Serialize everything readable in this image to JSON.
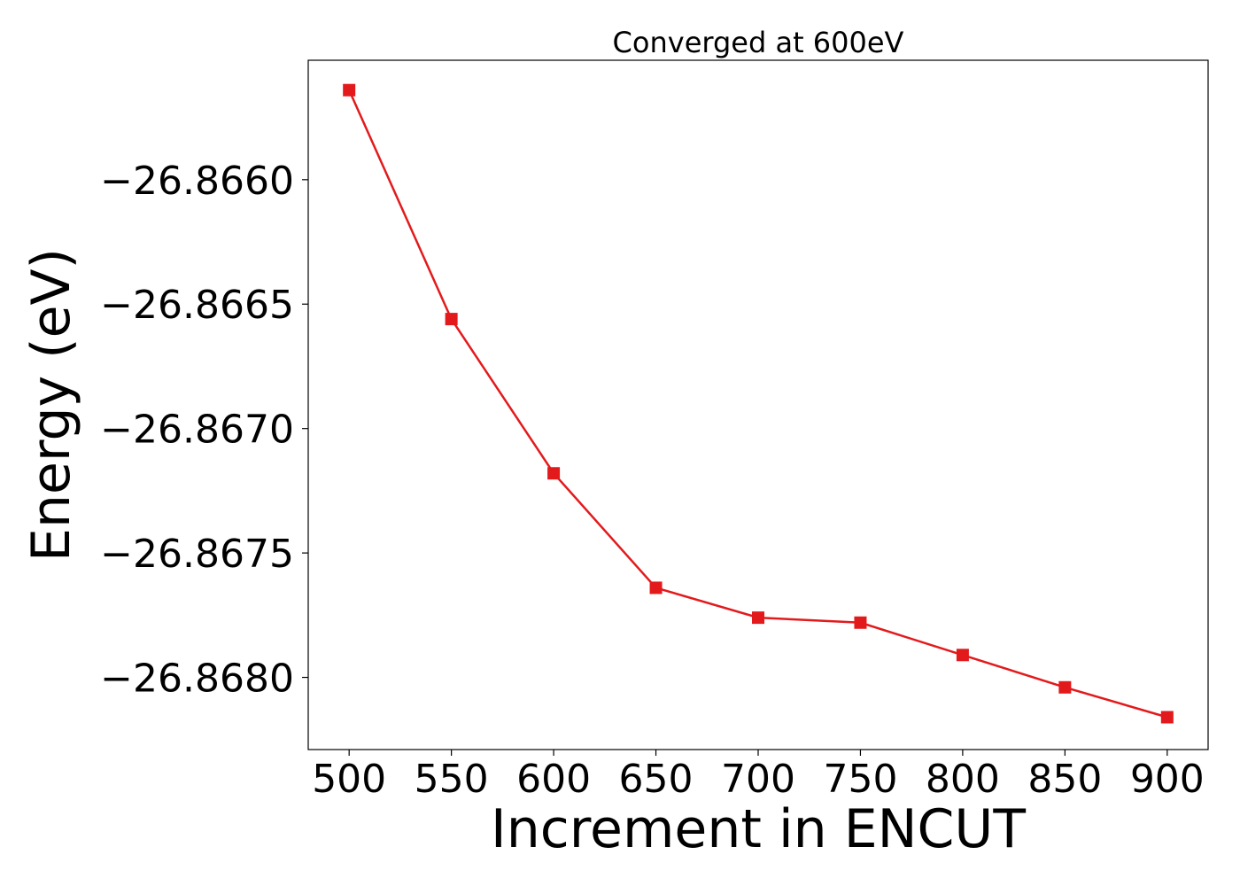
{
  "chart_data": {
    "type": "line",
    "title": "Converged at 600eV",
    "xlabel": "Increment in ENCUT",
    "ylabel": "Energy (eV)",
    "xlim": [
      480,
      920
    ],
    "ylim": [
      -26.86829,
      -26.86552
    ],
    "x_ticks": [
      500,
      550,
      600,
      650,
      700,
      750,
      800,
      850,
      900
    ],
    "x_tick_labels": [
      "500",
      "550",
      "600",
      "650",
      "700",
      "750",
      "800",
      "850",
      "900"
    ],
    "y_ticks": [
      -26.866,
      -26.8665,
      -26.867,
      -26.8675,
      -26.868
    ],
    "y_tick_labels": [
      "−26.8660",
      "−26.8665",
      "−26.8670",
      "−26.8675",
      "−26.8680"
    ],
    "grid": false,
    "marker": "square",
    "line_color": "#e31a1c",
    "x": [
      500,
      550,
      600,
      650,
      700,
      750,
      800,
      850,
      900
    ],
    "y": [
      -26.86564,
      -26.86656,
      -26.86718,
      -26.86764,
      -26.86776,
      -26.86778,
      -26.86791,
      -26.86804,
      -26.86816
    ]
  }
}
